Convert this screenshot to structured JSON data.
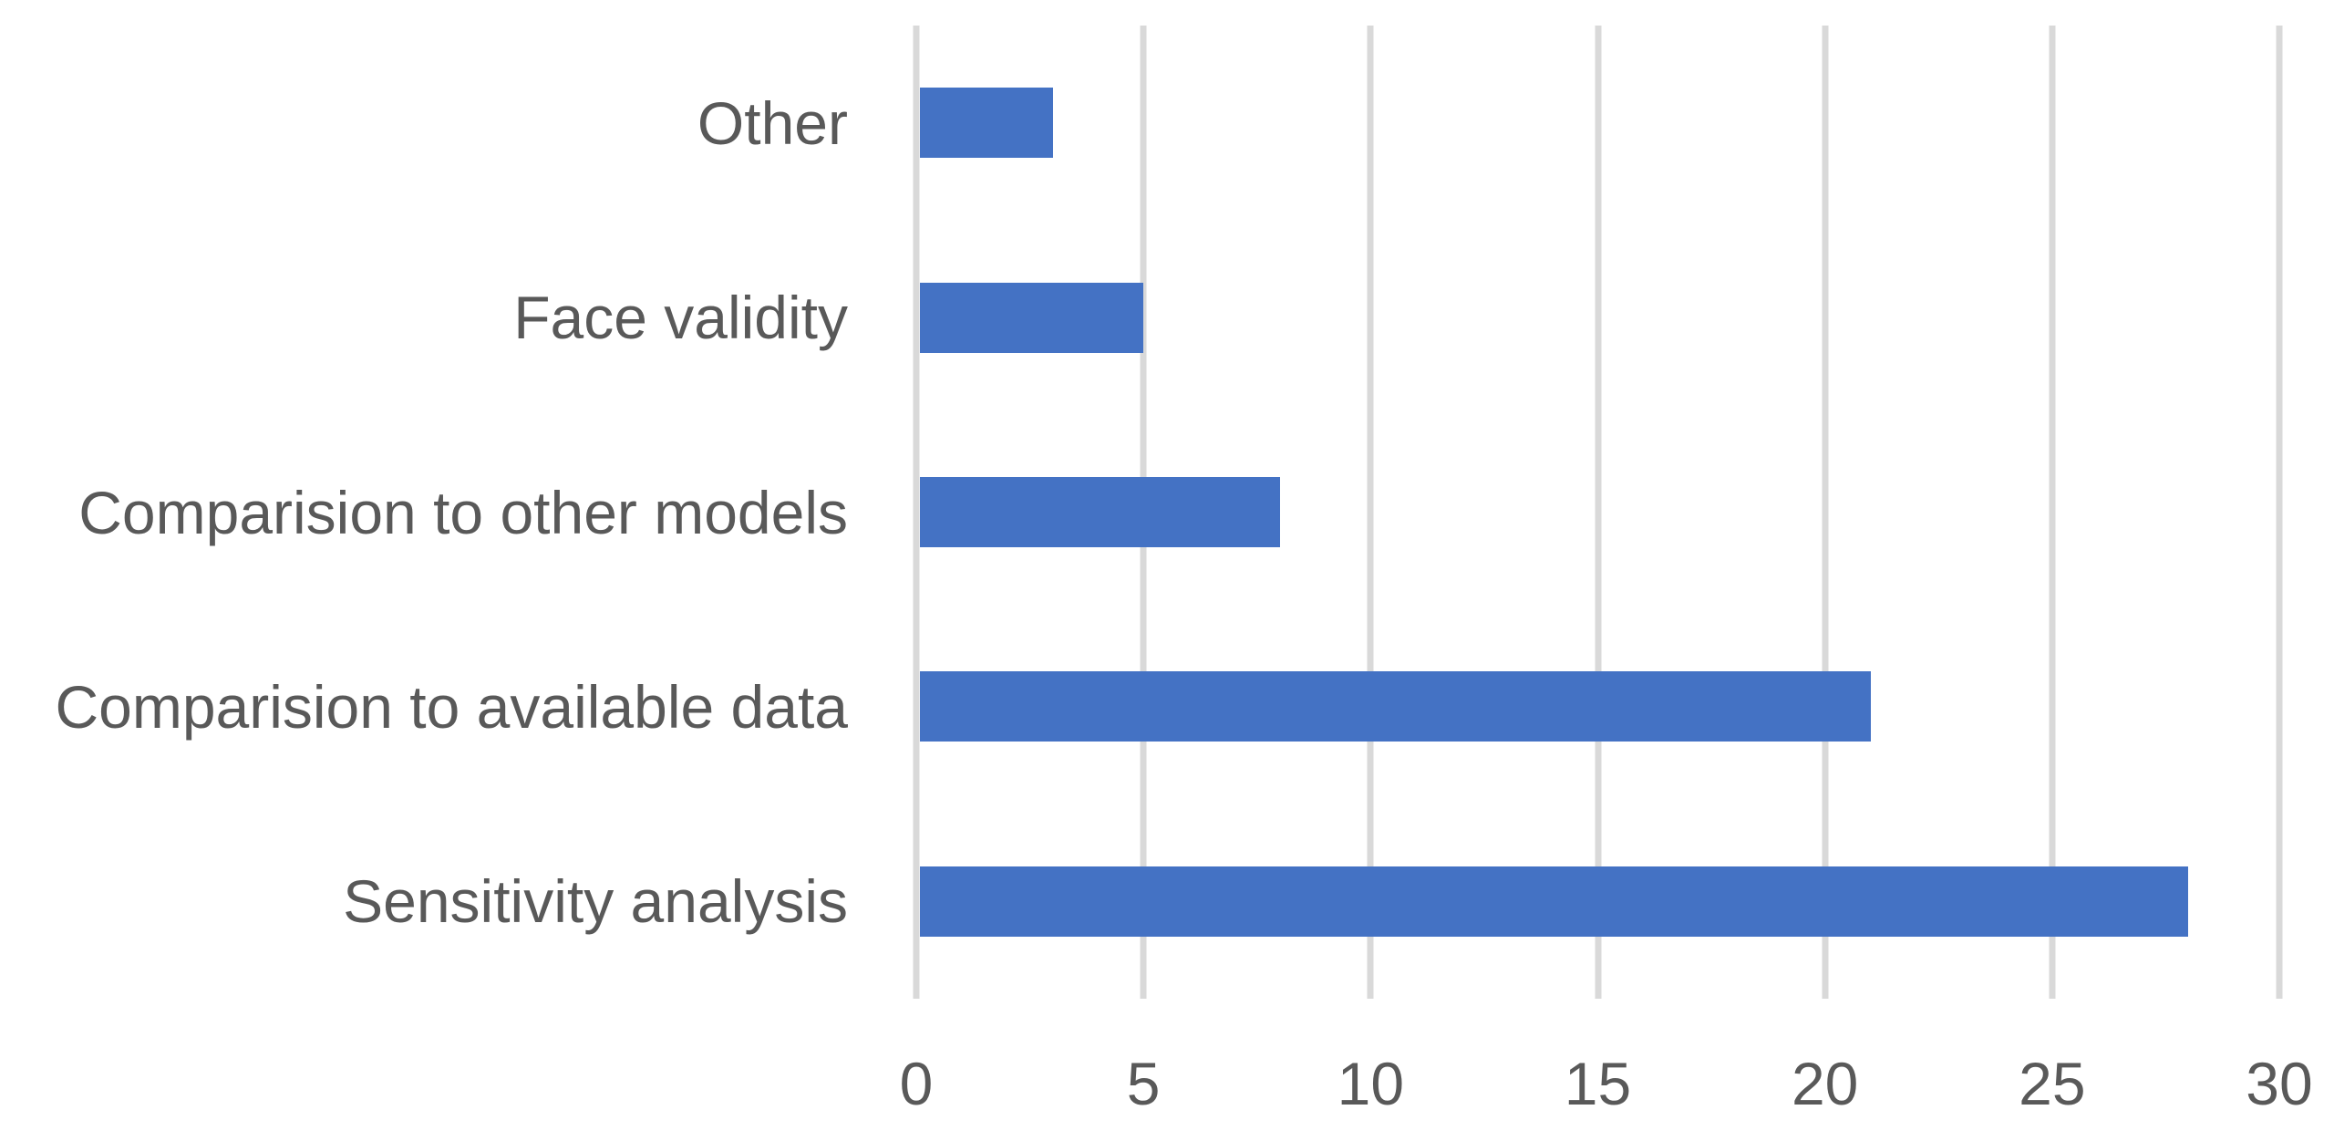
{
  "chart_data": {
    "type": "bar",
    "orientation": "horizontal",
    "title": "",
    "xlabel": "",
    "ylabel": "",
    "categories_top_to_bottom": [
      "Other",
      "Face validity",
      "Comparision to other models",
      "Comparision to available data",
      "Sensitivity analysis"
    ],
    "values": [
      3,
      5,
      8,
      21,
      28
    ],
    "xlim": [
      0,
      30
    ],
    "xticks": [
      0,
      5,
      10,
      15,
      20,
      25,
      30
    ],
    "grid": "vertical-gridlines-on",
    "legend": "none",
    "colors": {
      "bar": "#4472C4",
      "gridline": "#D9D9D9",
      "text": "#595959",
      "background": "#FFFFFF"
    }
  }
}
